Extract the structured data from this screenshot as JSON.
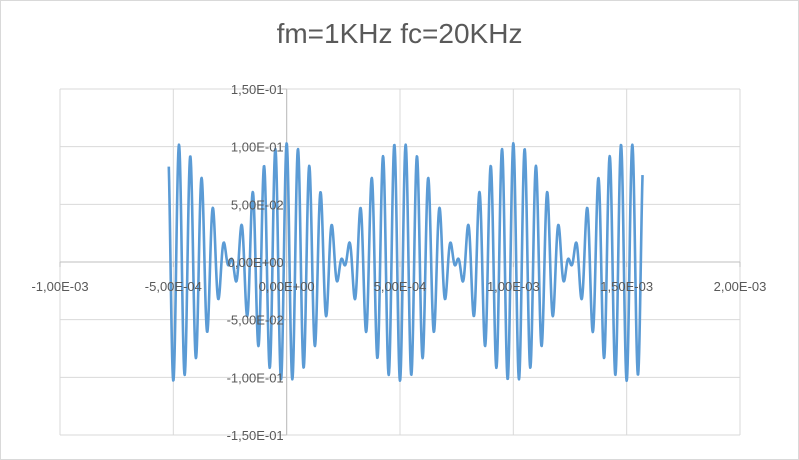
{
  "chart_data": {
    "type": "line",
    "title": "fm=1KHz fc=20KHz",
    "xlim": [
      -0.001,
      0.002
    ],
    "ylim": [
      -0.15,
      0.15
    ],
    "x_ticks": [
      -0.001,
      -0.0005,
      0.0,
      0.0005,
      0.001,
      0.0015,
      0.002
    ],
    "x_tick_labels": [
      "-1,00E-03",
      "-5,00E-04",
      "0,00E+00",
      "5,00E-04",
      "1,00E-03",
      "1,50E-03",
      "2,00E-03"
    ],
    "y_ticks": [
      0.15,
      0.1,
      0.05,
      0.0,
      -0.05,
      -0.1,
      -0.15
    ],
    "y_tick_labels": [
      "1,50E-01",
      "1,00E-01",
      "5,00E-02",
      "0,00E+00",
      "-5,00E-02",
      "-1,00E-01",
      "-1,50E-01"
    ],
    "grid": true,
    "x_range_data": [
      -0.00052,
      0.00157
    ],
    "series": [
      {
        "color": "#5b9bd5",
        "modulating_frequency_hz": 1000,
        "carrier_frequency_hz": 20000,
        "peak_amplitude": 0.103,
        "envelope_peaks_at": [
          0.0,
          0.001
        ],
        "envelope_nulls_at": [
          -0.0005,
          0.0005,
          0.0015
        ]
      }
    ]
  }
}
